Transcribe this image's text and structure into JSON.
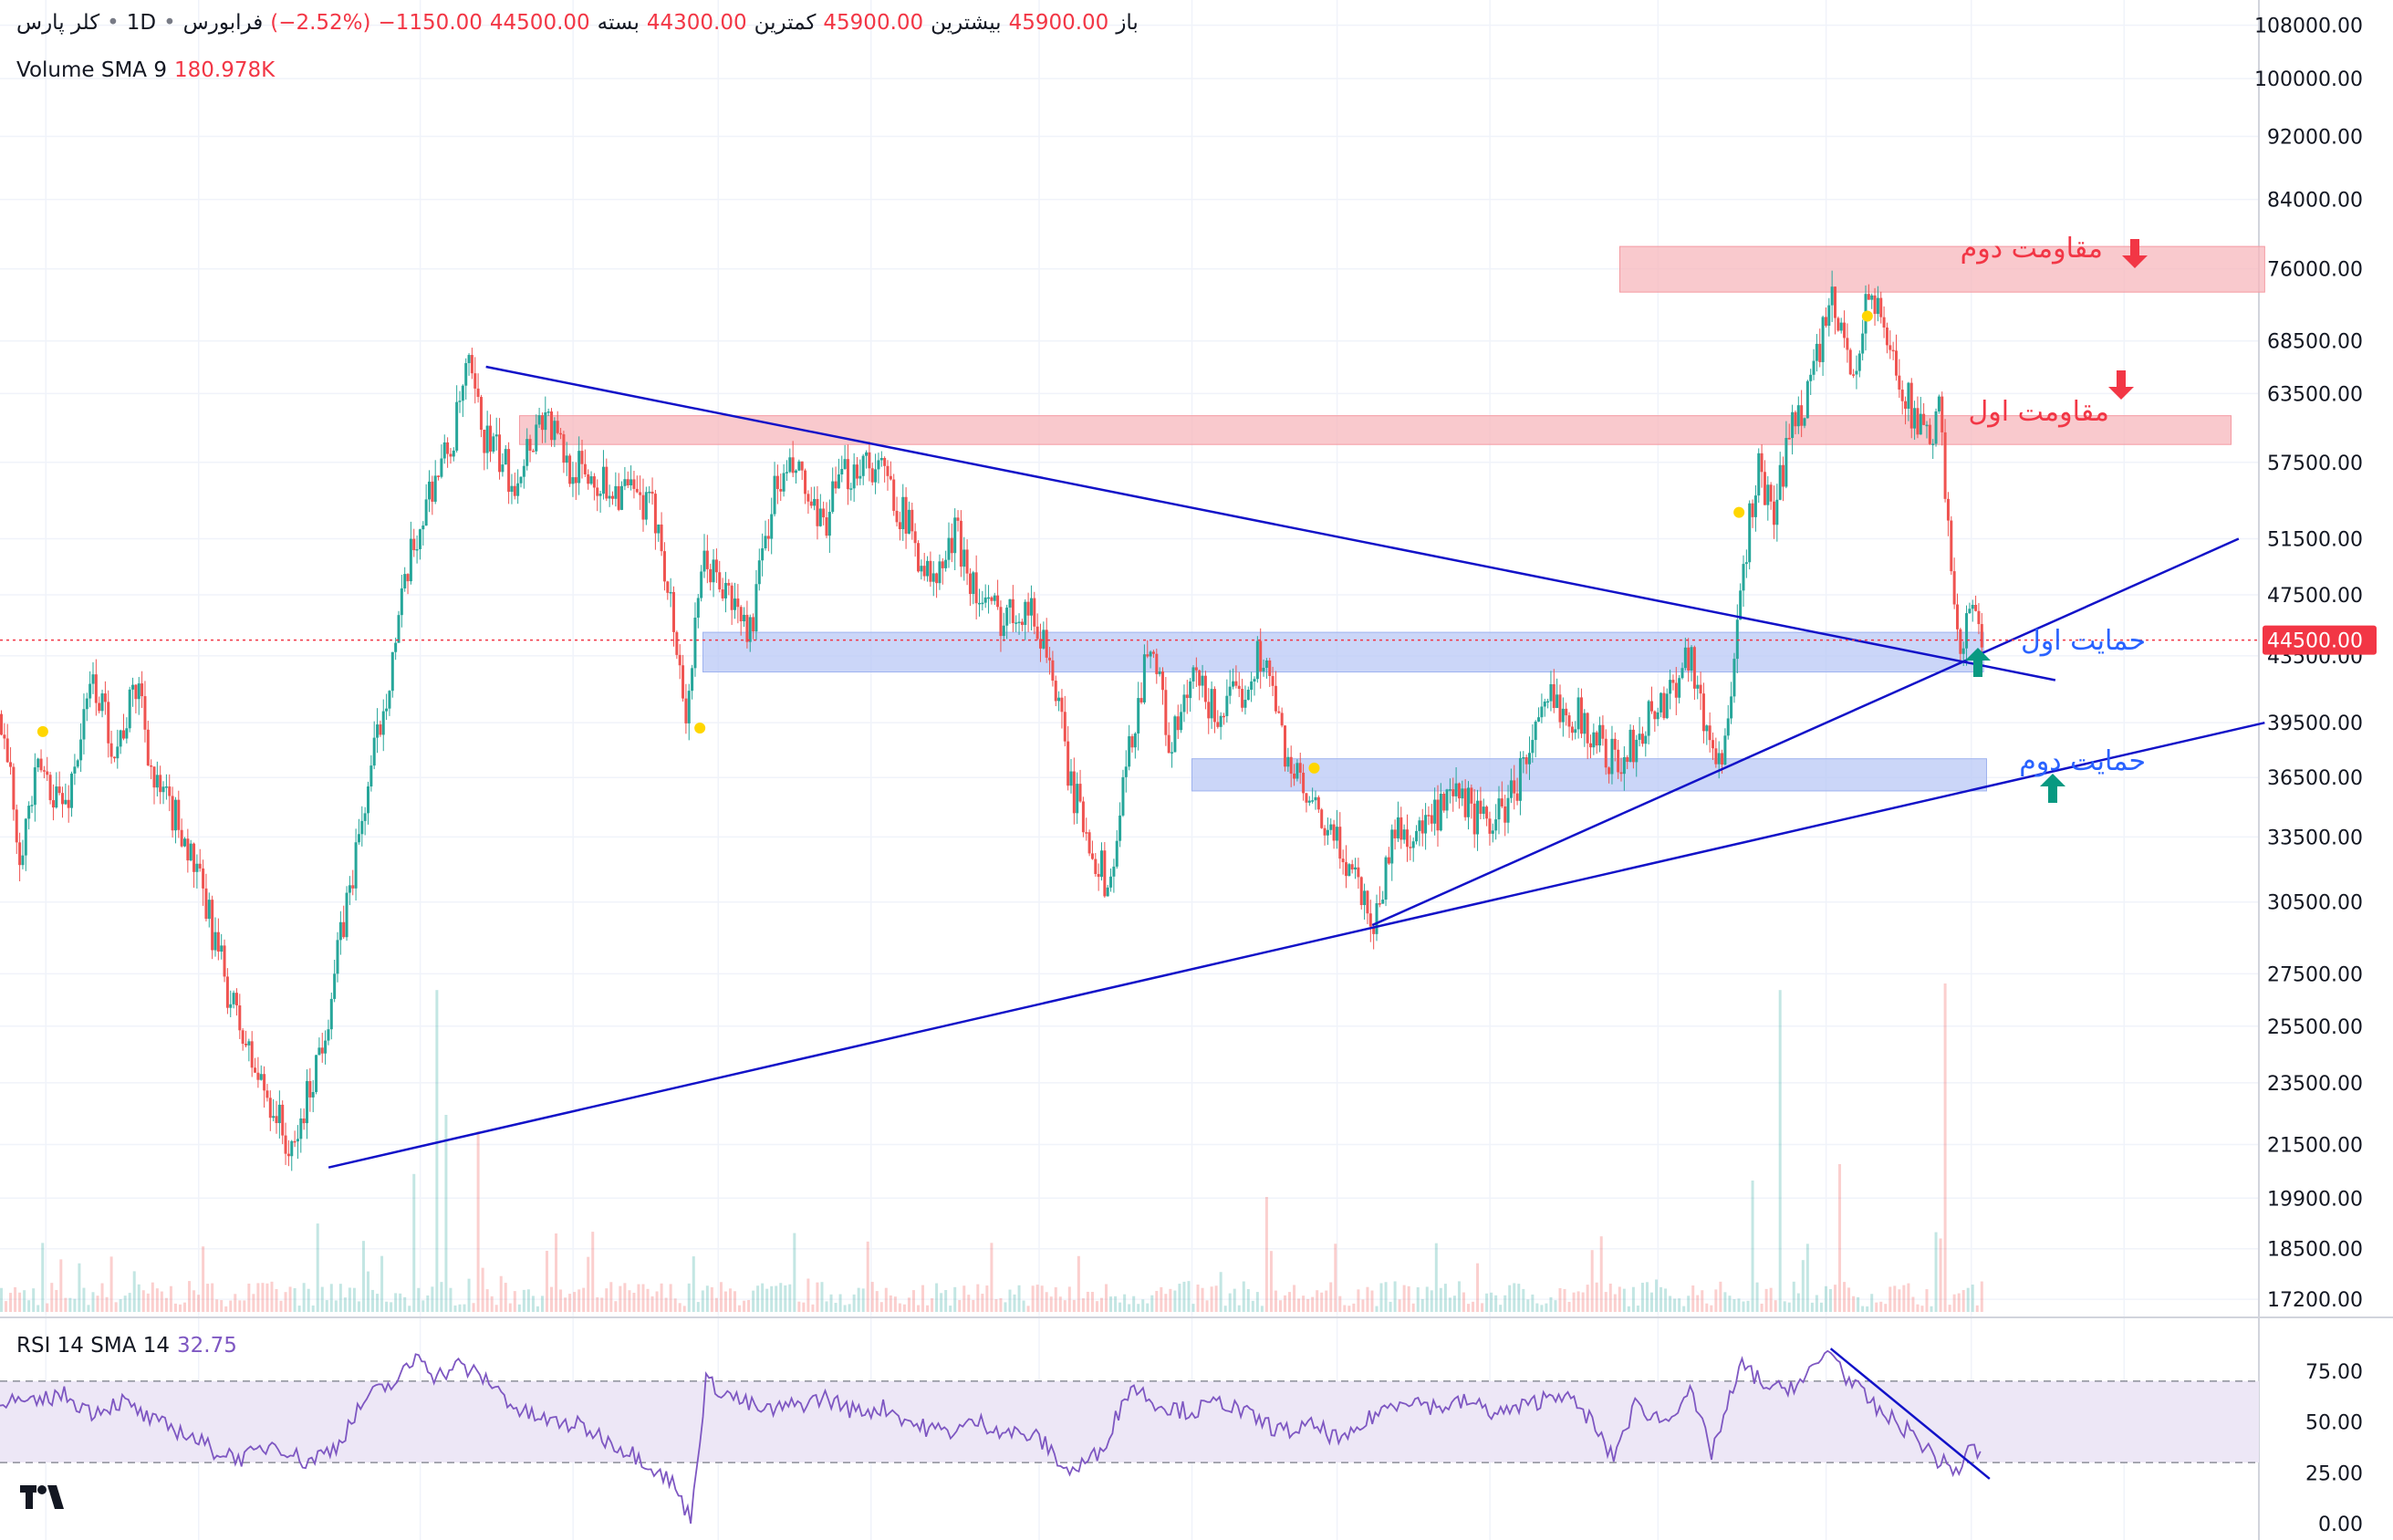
{
  "header": {
    "symbol": "کلر پارس",
    "interval": "1D",
    "exchange": "فرابورس",
    "dot": "•",
    "open_label": "باز",
    "open_value": "45900.00",
    "high_label": "بیشترین",
    "high_value": "45900.00",
    "low_label": "کمترین",
    "low_value": "44300.00",
    "close_label": "بسته",
    "close_value": "44500.00",
    "change_value": "−1150.00",
    "change_pct": "(−2.52%)"
  },
  "volume_indicator": {
    "label": "Volume SMA 9",
    "value": "180.978K"
  },
  "rsi_indicator": {
    "label": "RSI 14 SMA 14",
    "value": "32.75"
  },
  "price_axis": {
    "ticks": [
      "108000.00",
      "100000.00",
      "92000.00",
      "84000.00",
      "76000.00",
      "68500.00",
      "63500.00",
      "57500.00",
      "51500.00",
      "47500.00",
      "43500.00",
      "39500.00",
      "36500.00",
      "33500.00",
      "30500.00",
      "27500.00",
      "25500.00",
      "23500.00",
      "21500.00",
      "19900.00",
      "18500.00",
      "17200.00"
    ],
    "current_price": "44500.00"
  },
  "rsi_axis": {
    "ticks": [
      "75.00",
      "50.00",
      "25.00",
      "0.00"
    ]
  },
  "annotations": {
    "resistance_2": "مقاومت دوم",
    "resistance_1": "مقاومت اول",
    "support_1": "حمایت اول",
    "support_2": "حمایت دوم"
  },
  "colors": {
    "up": "#26a69a",
    "down": "#ef5350",
    "trendline": "#1212c8",
    "resistance_zone": "#f7b7bc",
    "support_zone": "#b9c8f6",
    "rsi_line": "#7e57c2",
    "rsi_band": "#ede7f6",
    "label_red": "#f23645",
    "label_blue": "#2962ff",
    "arrow_green": "#089981"
  },
  "chart_data": {
    "type": "candlestick",
    "y_scale": "log",
    "ylim": [
      16800,
      112000
    ],
    "current_price": 44500,
    "price_path": [
      [
        0,
        40000
      ],
      [
        12,
        33000
      ],
      [
        25,
        37000
      ],
      [
        42,
        35000
      ],
      [
        60,
        42000
      ],
      [
        75,
        38000
      ],
      [
        90,
        42000
      ],
      [
        100,
        36000
      ],
      [
        118,
        34000
      ],
      [
        135,
        30000
      ],
      [
        150,
        26500
      ],
      [
        165,
        24000
      ],
      [
        180,
        22500
      ],
      [
        190,
        21000
      ],
      [
        200,
        23000
      ],
      [
        212,
        25500
      ],
      [
        225,
        30000
      ],
      [
        240,
        36000
      ],
      [
        255,
        43000
      ],
      [
        268,
        50000
      ],
      [
        282,
        56000
      ],
      [
        295,
        59000
      ],
      [
        305,
        66000
      ],
      [
        315,
        60000
      ],
      [
        325,
        58000
      ],
      [
        335,
        56000
      ],
      [
        345,
        59000
      ],
      [
        355,
        62000
      ],
      [
        370,
        57500
      ],
      [
        390,
        56000
      ],
      [
        410,
        55000
      ],
      [
        430,
        53000
      ],
      [
        448,
        40000
      ],
      [
        460,
        50000
      ],
      [
        478,
        47000
      ],
      [
        490,
        45000
      ],
      [
        505,
        55000
      ],
      [
        520,
        57000
      ],
      [
        535,
        52000
      ],
      [
        550,
        56000
      ],
      [
        565,
        58000
      ],
      [
        580,
        56000
      ],
      [
        595,
        52000
      ],
      [
        610,
        48000
      ],
      [
        625,
        52000
      ],
      [
        640,
        47000
      ],
      [
        655,
        46000
      ],
      [
        670,
        47000
      ],
      [
        685,
        44000
      ],
      [
        700,
        36000
      ],
      [
        712,
        33500
      ],
      [
        725,
        31000
      ],
      [
        738,
        38000
      ],
      [
        752,
        45000
      ],
      [
        765,
        38000
      ],
      [
        780,
        42000
      ],
      [
        795,
        40000
      ],
      [
        810,
        41000
      ],
      [
        825,
        44000
      ],
      [
        840,
        38000
      ],
      [
        855,
        35000
      ],
      [
        870,
        33500
      ],
      [
        885,
        32000
      ],
      [
        898,
        29500
      ],
      [
        912,
        34000
      ],
      [
        925,
        33500
      ],
      [
        940,
        34500
      ],
      [
        955,
        35500
      ],
      [
        970,
        34000
      ],
      [
        985,
        35000
      ],
      [
        1000,
        38000
      ],
      [
        1015,
        41000
      ],
      [
        1030,
        40000
      ],
      [
        1045,
        38500
      ],
      [
        1060,
        37000
      ],
      [
        1075,
        39500
      ],
      [
        1090,
        41000
      ],
      [
        1105,
        44000
      ],
      [
        1115,
        39000
      ],
      [
        1125,
        37500
      ],
      [
        1133,
        41000
      ],
      [
        1140,
        50000
      ],
      [
        1150,
        57000
      ],
      [
        1160,
        53000
      ],
      [
        1170,
        60000
      ],
      [
        1180,
        63000
      ],
      [
        1190,
        68000
      ],
      [
        1198,
        72000
      ],
      [
        1206,
        68000
      ],
      [
        1214,
        66000
      ],
      [
        1222,
        74000
      ],
      [
        1230,
        70000
      ],
      [
        1240,
        66000
      ],
      [
        1250,
        62000
      ],
      [
        1260,
        59000
      ],
      [
        1268,
        62000
      ],
      [
        1275,
        50000
      ],
      [
        1282,
        44500
      ],
      [
        1290,
        46500
      ],
      [
        1297,
        44500
      ]
    ],
    "volume_spikes": [
      [
        270,
        0.42
      ],
      [
        285,
        0.98
      ],
      [
        292,
        0.6
      ],
      [
        312,
        0.55
      ],
      [
        1165,
        0.98
      ],
      [
        1272,
        1.0
      ],
      [
        1202,
        0.45
      ],
      [
        828,
        0.35
      ],
      [
        1145,
        0.4
      ]
    ],
    "rsi_path": [
      [
        0,
        62
      ],
      [
        20,
        58
      ],
      [
        40,
        64
      ],
      [
        60,
        55
      ],
      [
        80,
        60
      ],
      [
        100,
        50
      ],
      [
        120,
        45
      ],
      [
        140,
        36
      ],
      [
        160,
        32
      ],
      [
        180,
        40
      ],
      [
        200,
        30
      ],
      [
        220,
        38
      ],
      [
        240,
        62
      ],
      [
        260,
        70
      ],
      [
        275,
        84
      ],
      [
        285,
        72
      ],
      [
        300,
        78
      ],
      [
        320,
        70
      ],
      [
        340,
        55
      ],
      [
        360,
        50
      ],
      [
        380,
        48
      ],
      [
        400,
        40
      ],
      [
        420,
        32
      ],
      [
        440,
        20
      ],
      [
        452,
        2
      ],
      [
        462,
        70
      ],
      [
        480,
        62
      ],
      [
        500,
        55
      ],
      [
        520,
        58
      ],
      [
        540,
        62
      ],
      [
        560,
        55
      ],
      [
        580,
        57
      ],
      [
        600,
        48
      ],
      [
        620,
        45
      ],
      [
        640,
        50
      ],
      [
        660,
        45
      ],
      [
        680,
        42
      ],
      [
        700,
        25
      ],
      [
        720,
        35
      ],
      [
        740,
        68
      ],
      [
        760,
        58
      ],
      [
        780,
        55
      ],
      [
        800,
        60
      ],
      [
        820,
        52
      ],
      [
        840,
        45
      ],
      [
        860,
        48
      ],
      [
        880,
        40
      ],
      [
        900,
        54
      ],
      [
        920,
        62
      ],
      [
        940,
        57
      ],
      [
        960,
        60
      ],
      [
        980,
        54
      ],
      [
        1000,
        58
      ],
      [
        1020,
        65
      ],
      [
        1040,
        52
      ],
      [
        1055,
        32
      ],
      [
        1070,
        58
      ],
      [
        1090,
        50
      ],
      [
        1105,
        66
      ],
      [
        1120,
        35
      ],
      [
        1140,
        78
      ],
      [
        1160,
        65
      ],
      [
        1180,
        70
      ],
      [
        1198,
        86
      ],
      [
        1210,
        70
      ],
      [
        1230,
        55
      ],
      [
        1250,
        45
      ],
      [
        1270,
        30
      ],
      [
        1282,
        26
      ],
      [
        1290,
        38
      ],
      [
        1297,
        33
      ]
    ],
    "rsi_levels": [
      70,
      30
    ],
    "zones": [
      {
        "label": "resistance_2",
        "x0": 1060,
        "x1": 1482,
        "y0": 73500,
        "y1": 78500
      },
      {
        "label": "resistance_1",
        "x0": 340,
        "x1": 1460,
        "y0": 59000,
        "y1": 61500
      },
      {
        "label": "support_1",
        "x0": 460,
        "x1": 1298,
        "y0": 42500,
        "y1": 45000
      },
      {
        "label": "support_2",
        "x0": 780,
        "x1": 1300,
        "y0": 35800,
        "y1": 37500
      }
    ],
    "trendlines": [
      {
        "x0": 318,
        "y0": 66000,
        "x1": 1345,
        "y1": 42000
      },
      {
        "x0": 215,
        "y0": 20800,
        "x1": 1482,
        "y1": 39500
      },
      {
        "x0": 898,
        "y0": 29500,
        "x1": 1465,
        "y1": 51500
      }
    ],
    "rsi_trendline": {
      "x0": 1198,
      "y0": 86,
      "x1": 1302,
      "y1": 22
    }
  }
}
